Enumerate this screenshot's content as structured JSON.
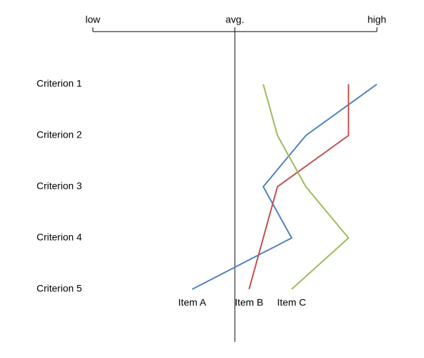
{
  "chart_data": {
    "type": "line",
    "orientation": "horizontal",
    "categories": [
      "Criterion 1",
      "Criterion 2",
      "Criterion 3",
      "Criterion 4",
      "Criterion 5"
    ],
    "series": [
      {
        "name": "Item A",
        "color": "#4f81bd",
        "values": [
          10,
          7.5,
          6,
          7,
          3.5
        ]
      },
      {
        "name": "Item B",
        "color": "#c0504d",
        "values": [
          9,
          9,
          6.5,
          6,
          5.5
        ]
      },
      {
        "name": "Item C",
        "color": "#9bbb59",
        "values": [
          6,
          6.5,
          7.5,
          9,
          7
        ]
      }
    ],
    "xlim": [
      0,
      10
    ],
    "xticks": [
      {
        "value": 0,
        "label": "low"
      },
      {
        "value": 5,
        "label": "avg."
      },
      {
        "value": 10,
        "label": "high"
      }
    ],
    "reference_line": 5
  }
}
